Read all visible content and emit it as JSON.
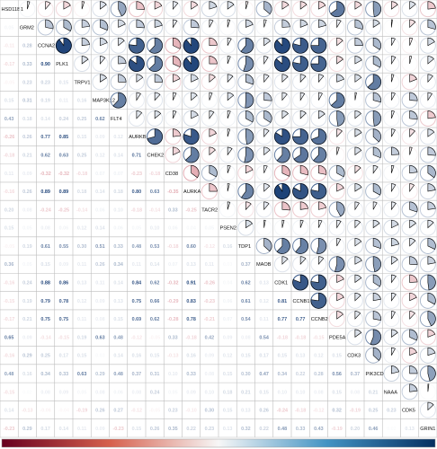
{
  "chart_data": {
    "type": "heatmap",
    "subtype": "correlogram (upper: pie, lower: numeric)",
    "variables": [
      "HSD11B1",
      "GRM2",
      "CCNA2",
      "PLK1",
      "TRPV1",
      "MAP3K12",
      "FLT4",
      "AURKB",
      "CHEK2",
      "CD38",
      "AURKA",
      "TACR2",
      "PSEN2",
      "TDP1",
      "MAOB",
      "CDK1",
      "CCNB1",
      "CCNB2",
      "PDE5A",
      "CDK3",
      "PIK3CD",
      "NAAA",
      "CDK5",
      "GRIN1"
    ],
    "lower_values": [
      [],
      [
        0.05
      ],
      [
        -0.11,
        0.28
      ],
      [
        -0.17,
        0.33,
        0.9
      ],
      [
        -0.05,
        0.23,
        0.23,
        0.15
      ],
      [
        0.15,
        0.31,
        0.19,
        0.11,
        0.16
      ],
      [
        0.43,
        0.18,
        0.14,
        0.24,
        0.25,
        0.62
      ],
      [
        -0.26,
        0.26,
        0.77,
        0.85,
        0.15,
        0.09,
        0.12
      ],
      [
        -0.18,
        0.21,
        0.62,
        0.63,
        0.25,
        0.12,
        0.14,
        0.71
      ],
      [
        0.11,
        0.09,
        -0.32,
        -0.32,
        -0.18,
        0.07,
        0.07,
        -0.23,
        -0.18
      ],
      [
        -0.16,
        0.26,
        0.89,
        0.89,
        0.18,
        0.14,
        0.18,
        0.8,
        0.63,
        -0.35
      ],
      [
        0.2,
        0.08,
        -0.24,
        -0.25,
        -0.14,
        0.06,
        0.1,
        -0.18,
        -0.14,
        0.33,
        -0.25
      ],
      [
        0.15,
        0.05,
        0.08,
        0.06,
        0.12,
        0.14,
        0.06,
        0.05,
        0.1,
        0.06,
        0.04,
        0.05
      ],
      [
        -0.05,
        0.19,
        0.61,
        0.55,
        0.3,
        0.51,
        0.33,
        0.48,
        0.53,
        -0.18,
        0.6,
        -0.12,
        0.16
      ],
      [
        0.36,
        0.05,
        0.15,
        0.09,
        0.11,
        0.26,
        0.34,
        0.11,
        0.14,
        0.07,
        0.13,
        0.11,
        0.03,
        0.37
      ],
      [
        -0.16,
        0.24,
        0.88,
        0.86,
        0.13,
        0.11,
        0.14,
        0.84,
        0.62,
        -0.32,
        0.91,
        -0.26,
        0.04,
        0.62,
        0.13
      ],
      [
        -0.15,
        0.19,
        0.79,
        0.78,
        0.12,
        0.09,
        0.13,
        0.75,
        0.66,
        -0.29,
        0.83,
        -0.23,
        0.06,
        0.61,
        0.12,
        0.81
      ],
      [
        -0.17,
        0.21,
        0.75,
        0.75,
        0.11,
        0.08,
        0.15,
        0.69,
        0.62,
        -0.28,
        0.78,
        -0.21,
        0.07,
        0.54,
        0.11,
        0.77,
        0.77
      ],
      [
        0.65,
        0.09,
        -0.14,
        -0.15,
        0.19,
        0.63,
        0.48,
        -0.12,
        -0.05,
        0.33,
        -0.18,
        0.42,
        0.09,
        0.08,
        0.54,
        -0.18,
        -0.18,
        -0.15
      ],
      [
        -0.16,
        0.29,
        0.25,
        0.17,
        0.15,
        0.03,
        0.14,
        0.16,
        0.15,
        -0.13,
        0.16,
        0.09,
        0.12,
        0.15,
        0.17,
        0.15,
        0.13,
        0.12,
        0.15
      ],
      [
        0.48,
        0.16,
        0.34,
        0.33,
        0.63,
        0.29,
        0.48,
        0.37,
        0.31,
        0.1,
        0.33,
        0.08,
        0.15,
        0.3,
        0.47,
        0.34,
        0.22,
        0.28,
        0.56,
        0.37
      ],
      [
        -0.15,
        0.02,
        0.08,
        0.09,
        0.05,
        0.08,
        0.06,
        0.08,
        0.24,
        0.05,
        0.09,
        0.1,
        0.18,
        0.21,
        0.15,
        0.1,
        0.1,
        0.08,
        0.15,
        0.08,
        0.21
      ],
      [
        0.14,
        -0.13,
        -0.06,
        -0.04,
        -0.19,
        0.26,
        0.27,
        -0.12,
        -0.05,
        0.23,
        -0.1,
        0.3,
        0.15,
        0.13,
        0.26,
        -0.24,
        -0.18,
        -0.12,
        0.32,
        -0.19,
        0.25,
        0.23
      ],
      [
        -0.23,
        0.29,
        0.17,
        0.14,
        0.11,
        0.09,
        -0.23,
        0.15,
        0.26,
        0.35,
        0.22,
        0.23,
        0.13,
        0.32,
        0.22,
        0.48,
        0.33,
        0.43,
        -0.19,
        0.2,
        0.46,
        0.02,
        0.13
      ]
    ],
    "colors": {
      "negative": "#c0392b",
      "positive": "#08306b",
      "neutral": "#ffffff",
      "grid": "#bdbdbd"
    },
    "colorbar_range": [
      -1,
      1
    ],
    "legend_position": "bottom"
  }
}
